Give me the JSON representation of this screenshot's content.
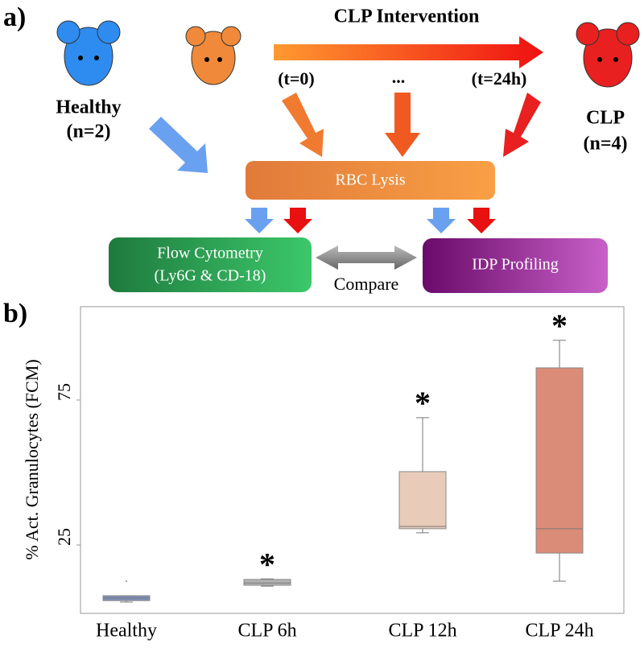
{
  "diagram": {
    "panel_a": "a)",
    "intervention": "CLP Intervention",
    "t_start": "(t=0)",
    "t_mid": "...",
    "t_end": "(t=24h)",
    "healthy": "Healthy",
    "healthy_n": "(n=2)",
    "clp": "CLP",
    "clp_n": "(n=4)",
    "lysis": "RBC Lysis",
    "flow_line1": "Flow Cytometry",
    "flow_line2": "(Ly6G & CD-18)",
    "idp": "IDP Profiling",
    "compare": "Compare"
  },
  "chart_data": {
    "type": "box",
    "panel_label": "b)",
    "y_label": "% Act. Granulocytes  (FCM)",
    "categories": [
      "Healthy",
      "CLP 6h",
      "CLP 12h",
      "CLP 24h"
    ],
    "boxes": [
      {
        "min": 5.3,
        "q1": 5.8,
        "median": 6.7,
        "q3": 7.5,
        "max": 7.5,
        "outliers": [
          12.5
        ],
        "color": "#7f8fb8"
      },
      {
        "min": 10.8,
        "q1": 11.1,
        "median": 11.9,
        "q3": 13.1,
        "max": 13.3,
        "outliers": [],
        "color": "#b3b3b3",
        "annotation": "*"
      },
      {
        "min": 29.2,
        "q1": 30.6,
        "median": 31.4,
        "q3": 50.3,
        "max": 68.9,
        "outliers": [],
        "color": "#e8cbb9",
        "annotation": "*"
      },
      {
        "min": 12.5,
        "q1": 22.2,
        "median": 30.6,
        "q3": 86.1,
        "max": 95.6,
        "outliers": [],
        "color": "#db8c78",
        "annotation": "*"
      }
    ],
    "ylim": [
      1.4,
      107.2
    ],
    "yticks": [
      25,
      75
    ]
  }
}
